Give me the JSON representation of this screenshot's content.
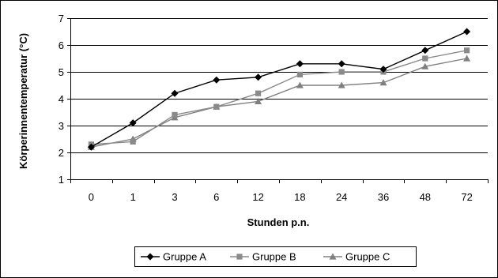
{
  "chart_data": {
    "type": "line",
    "title": "",
    "xlabel": "Stunden p.n.",
    "ylabel": "Körperinnentemperatur (°C)",
    "categories": [
      "0",
      "1",
      "3",
      "6",
      "12",
      "18",
      "24",
      "36",
      "48",
      "72"
    ],
    "ylim": [
      1,
      7
    ],
    "yticks": [
      1,
      2,
      3,
      4,
      5,
      6,
      7
    ],
    "grid": "horizontal",
    "legend_position": "bottom",
    "series": [
      {
        "name": "Gruppe A",
        "marker": "diamond",
        "color": "#000000",
        "values": [
          2.2,
          3.1,
          4.2,
          4.7,
          4.8,
          5.3,
          5.3,
          5.1,
          5.8,
          6.5
        ]
      },
      {
        "name": "Gruppe B",
        "marker": "square",
        "color": "#8a8a8a",
        "values": [
          2.3,
          2.4,
          3.4,
          3.7,
          4.2,
          4.9,
          5.0,
          5.0,
          5.5,
          5.8
        ]
      },
      {
        "name": "Gruppe C",
        "marker": "triangle",
        "color": "#808080",
        "values": [
          2.2,
          2.5,
          3.3,
          3.7,
          3.9,
          4.5,
          4.5,
          4.6,
          5.2,
          5.5
        ]
      }
    ]
  }
}
